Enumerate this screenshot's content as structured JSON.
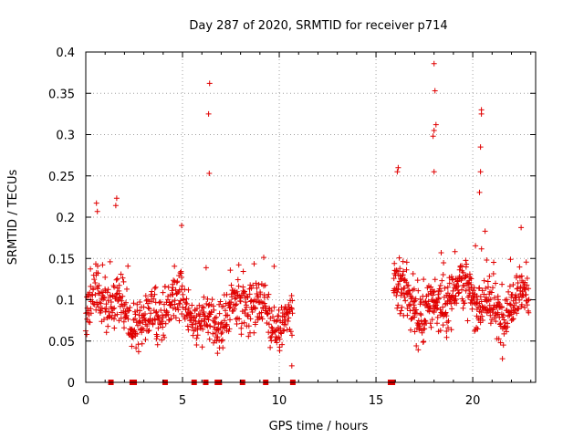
{
  "chart_data": {
    "type": "scatter",
    "title": "Day 287 of 2020, SRMTID for receiver p714",
    "xlabel": "GPS time / hours",
    "ylabel": "SRMTID / TECUs",
    "xlim": [
      0,
      23.25
    ],
    "ylim": [
      0,
      0.4
    ],
    "xticks": [
      0,
      5,
      10,
      15,
      20
    ],
    "xtick_labels": [
      "0",
      "5",
      "10",
      "15",
      "20"
    ],
    "yticks": [
      0,
      0.05,
      0.1,
      0.15,
      0.2,
      0.25,
      0.3,
      0.35,
      0.4
    ],
    "ytick_labels": [
      "0",
      "0.05",
      "0.1",
      "0.15",
      "0.2",
      "0.25",
      "0.3",
      "0.35",
      "0.4"
    ],
    "grid": true,
    "marker": "plus",
    "color": "#e00000",
    "series": [
      {
        "name": "SRMTID",
        "segments": [
          {
            "x_start": 0.0,
            "x_end": 10.7,
            "step": 0.016,
            "y_mean": 0.085,
            "y_spread": 0.05
          },
          {
            "x_start": 15.9,
            "x_end": 22.9,
            "step": 0.014,
            "y_mean": 0.1,
            "y_spread": 0.055
          }
        ],
        "outliers": [
          {
            "x": 6.4,
            "y": 0.362
          },
          {
            "x": 6.35,
            "y": 0.325
          },
          {
            "x": 6.38,
            "y": 0.253
          },
          {
            "x": 18.0,
            "y": 0.386
          },
          {
            "x": 18.05,
            "y": 0.353
          },
          {
            "x": 18.1,
            "y": 0.312
          },
          {
            "x": 18.0,
            "y": 0.305
          },
          {
            "x": 17.95,
            "y": 0.298
          },
          {
            "x": 18.0,
            "y": 0.255
          },
          {
            "x": 20.45,
            "y": 0.33
          },
          {
            "x": 20.45,
            "y": 0.325
          },
          {
            "x": 20.4,
            "y": 0.285
          },
          {
            "x": 20.4,
            "y": 0.255
          },
          {
            "x": 20.35,
            "y": 0.23
          },
          {
            "x": 16.15,
            "y": 0.26
          },
          {
            "x": 16.1,
            "y": 0.255
          },
          {
            "x": 0.55,
            "y": 0.217
          },
          {
            "x": 0.6,
            "y": 0.207
          },
          {
            "x": 1.6,
            "y": 0.223
          },
          {
            "x": 1.55,
            "y": 0.214
          },
          {
            "x": 4.95,
            "y": 0.19
          },
          {
            "x": 10.65,
            "y": 0.02
          }
        ],
        "zero_markers": [
          1.3,
          2.4,
          2.5,
          4.1,
          5.6,
          6.2,
          6.8,
          6.9,
          8.1,
          9.3,
          10.7,
          15.75,
          15.85
        ]
      }
    ]
  }
}
